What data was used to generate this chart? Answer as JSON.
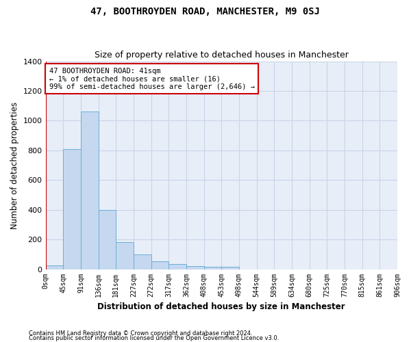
{
  "title": "47, BOOTHROYDEN ROAD, MANCHESTER, M9 0SJ",
  "subtitle": "Size of property relative to detached houses in Manchester",
  "xlabel": "Distribution of detached houses by size in Manchester",
  "ylabel": "Number of detached properties",
  "bar_values": [
    25,
    810,
    1060,
    400,
    180,
    100,
    52,
    35,
    20,
    15,
    15,
    0,
    0,
    0,
    0,
    0,
    0,
    0,
    0,
    0
  ],
  "bar_labels": [
    "0sqm",
    "45sqm",
    "91sqm",
    "136sqm",
    "181sqm",
    "227sqm",
    "272sqm",
    "317sqm",
    "362sqm",
    "408sqm",
    "453sqm",
    "498sqm",
    "544sqm",
    "589sqm",
    "634sqm",
    "680sqm",
    "725sqm",
    "770sqm",
    "815sqm",
    "861sqm",
    "906sqm"
  ],
  "bar_color": "#c5d8f0",
  "bar_edge_color": "#6baed6",
  "annotation_title": "47 BOOTHROYDEN ROAD: 41sqm",
  "annotation_line1": "← 1% of detached houses are smaller (16)",
  "annotation_line2": "99% of semi-detached houses are larger (2,646) →",
  "annotation_box_color": "#ffffff",
  "annotation_box_edge_color": "#cc0000",
  "vline_color": "#cc0000",
  "ylim": [
    0,
    1400
  ],
  "yticks": [
    0,
    200,
    400,
    600,
    800,
    1000,
    1200,
    1400
  ],
  "grid_color": "#c8d4e8",
  "background_color": "#e8eef8",
  "footer_line1": "Contains HM Land Registry data © Crown copyright and database right 2024.",
  "footer_line2": "Contains public sector information licensed under the Open Government Licence v3.0."
}
